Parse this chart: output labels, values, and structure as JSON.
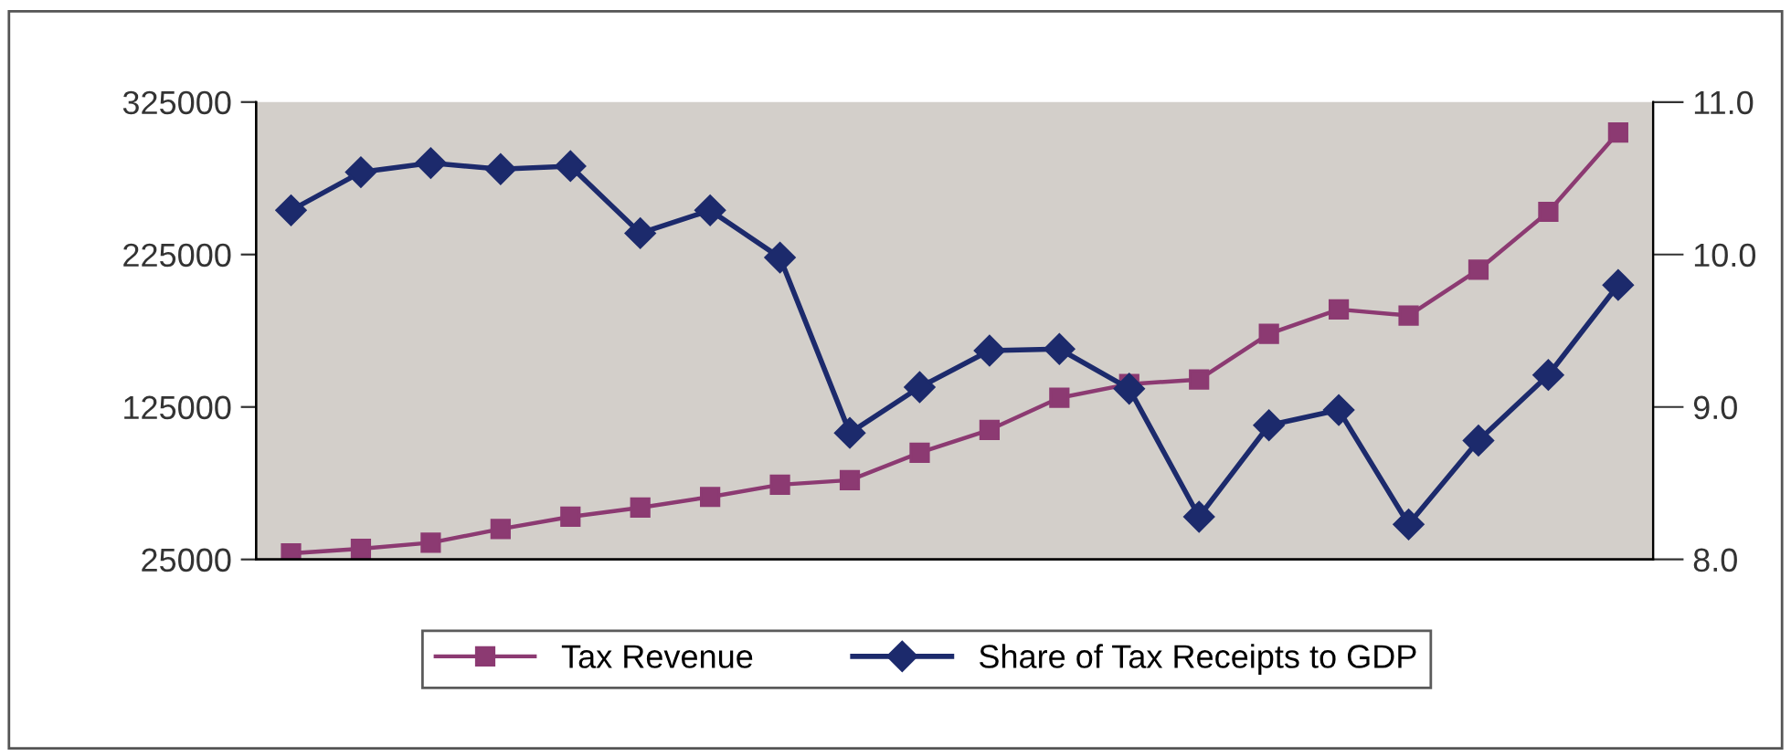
{
  "chart_data": {
    "type": "line",
    "categories": [
      null,
      null,
      null,
      null,
      null,
      null,
      null,
      null,
      null,
      null,
      null,
      null,
      null,
      null,
      null,
      null,
      null,
      null,
      null,
      null
    ],
    "series": [
      {
        "name": "Tax Revenue",
        "color": "#8c3a72",
        "marker": "square",
        "values": [
          29000,
          32000,
          36000,
          45000,
          53000,
          59000,
          66000,
          74000,
          77000,
          95000,
          110000,
          131000,
          140000,
          143000,
          173000,
          189000,
          185000,
          215000,
          253000,
          305000
        ]
      },
      {
        "name": "Share of Tax Receipts to GDP",
        "color": "#1c2a6c",
        "marker": "diamond",
        "axis": "y2",
        "values": [
          10.29,
          10.54,
          10.6,
          10.56,
          10.58,
          10.14,
          10.29,
          9.98,
          8.83,
          9.13,
          9.37,
          9.38,
          9.12,
          8.28,
          8.88,
          8.98,
          8.23,
          8.78,
          9.21,
          9.8
        ]
      }
    ],
    "ylim": [
      25000,
      325000
    ],
    "yticks": [
      25000,
      125000,
      225000,
      325000
    ],
    "y2lim": [
      8.0,
      11.0
    ],
    "y2ticks": [
      {
        "value": 8.0,
        "label": "8.0"
      },
      {
        "value": 9.0,
        "label": "9.0"
      },
      {
        "value": 10.0,
        "label": "10.0"
      },
      {
        "value": 11.0,
        "label": "11.0"
      }
    ],
    "grid": false,
    "legend": "bottom",
    "tick_labels": "y"
  }
}
